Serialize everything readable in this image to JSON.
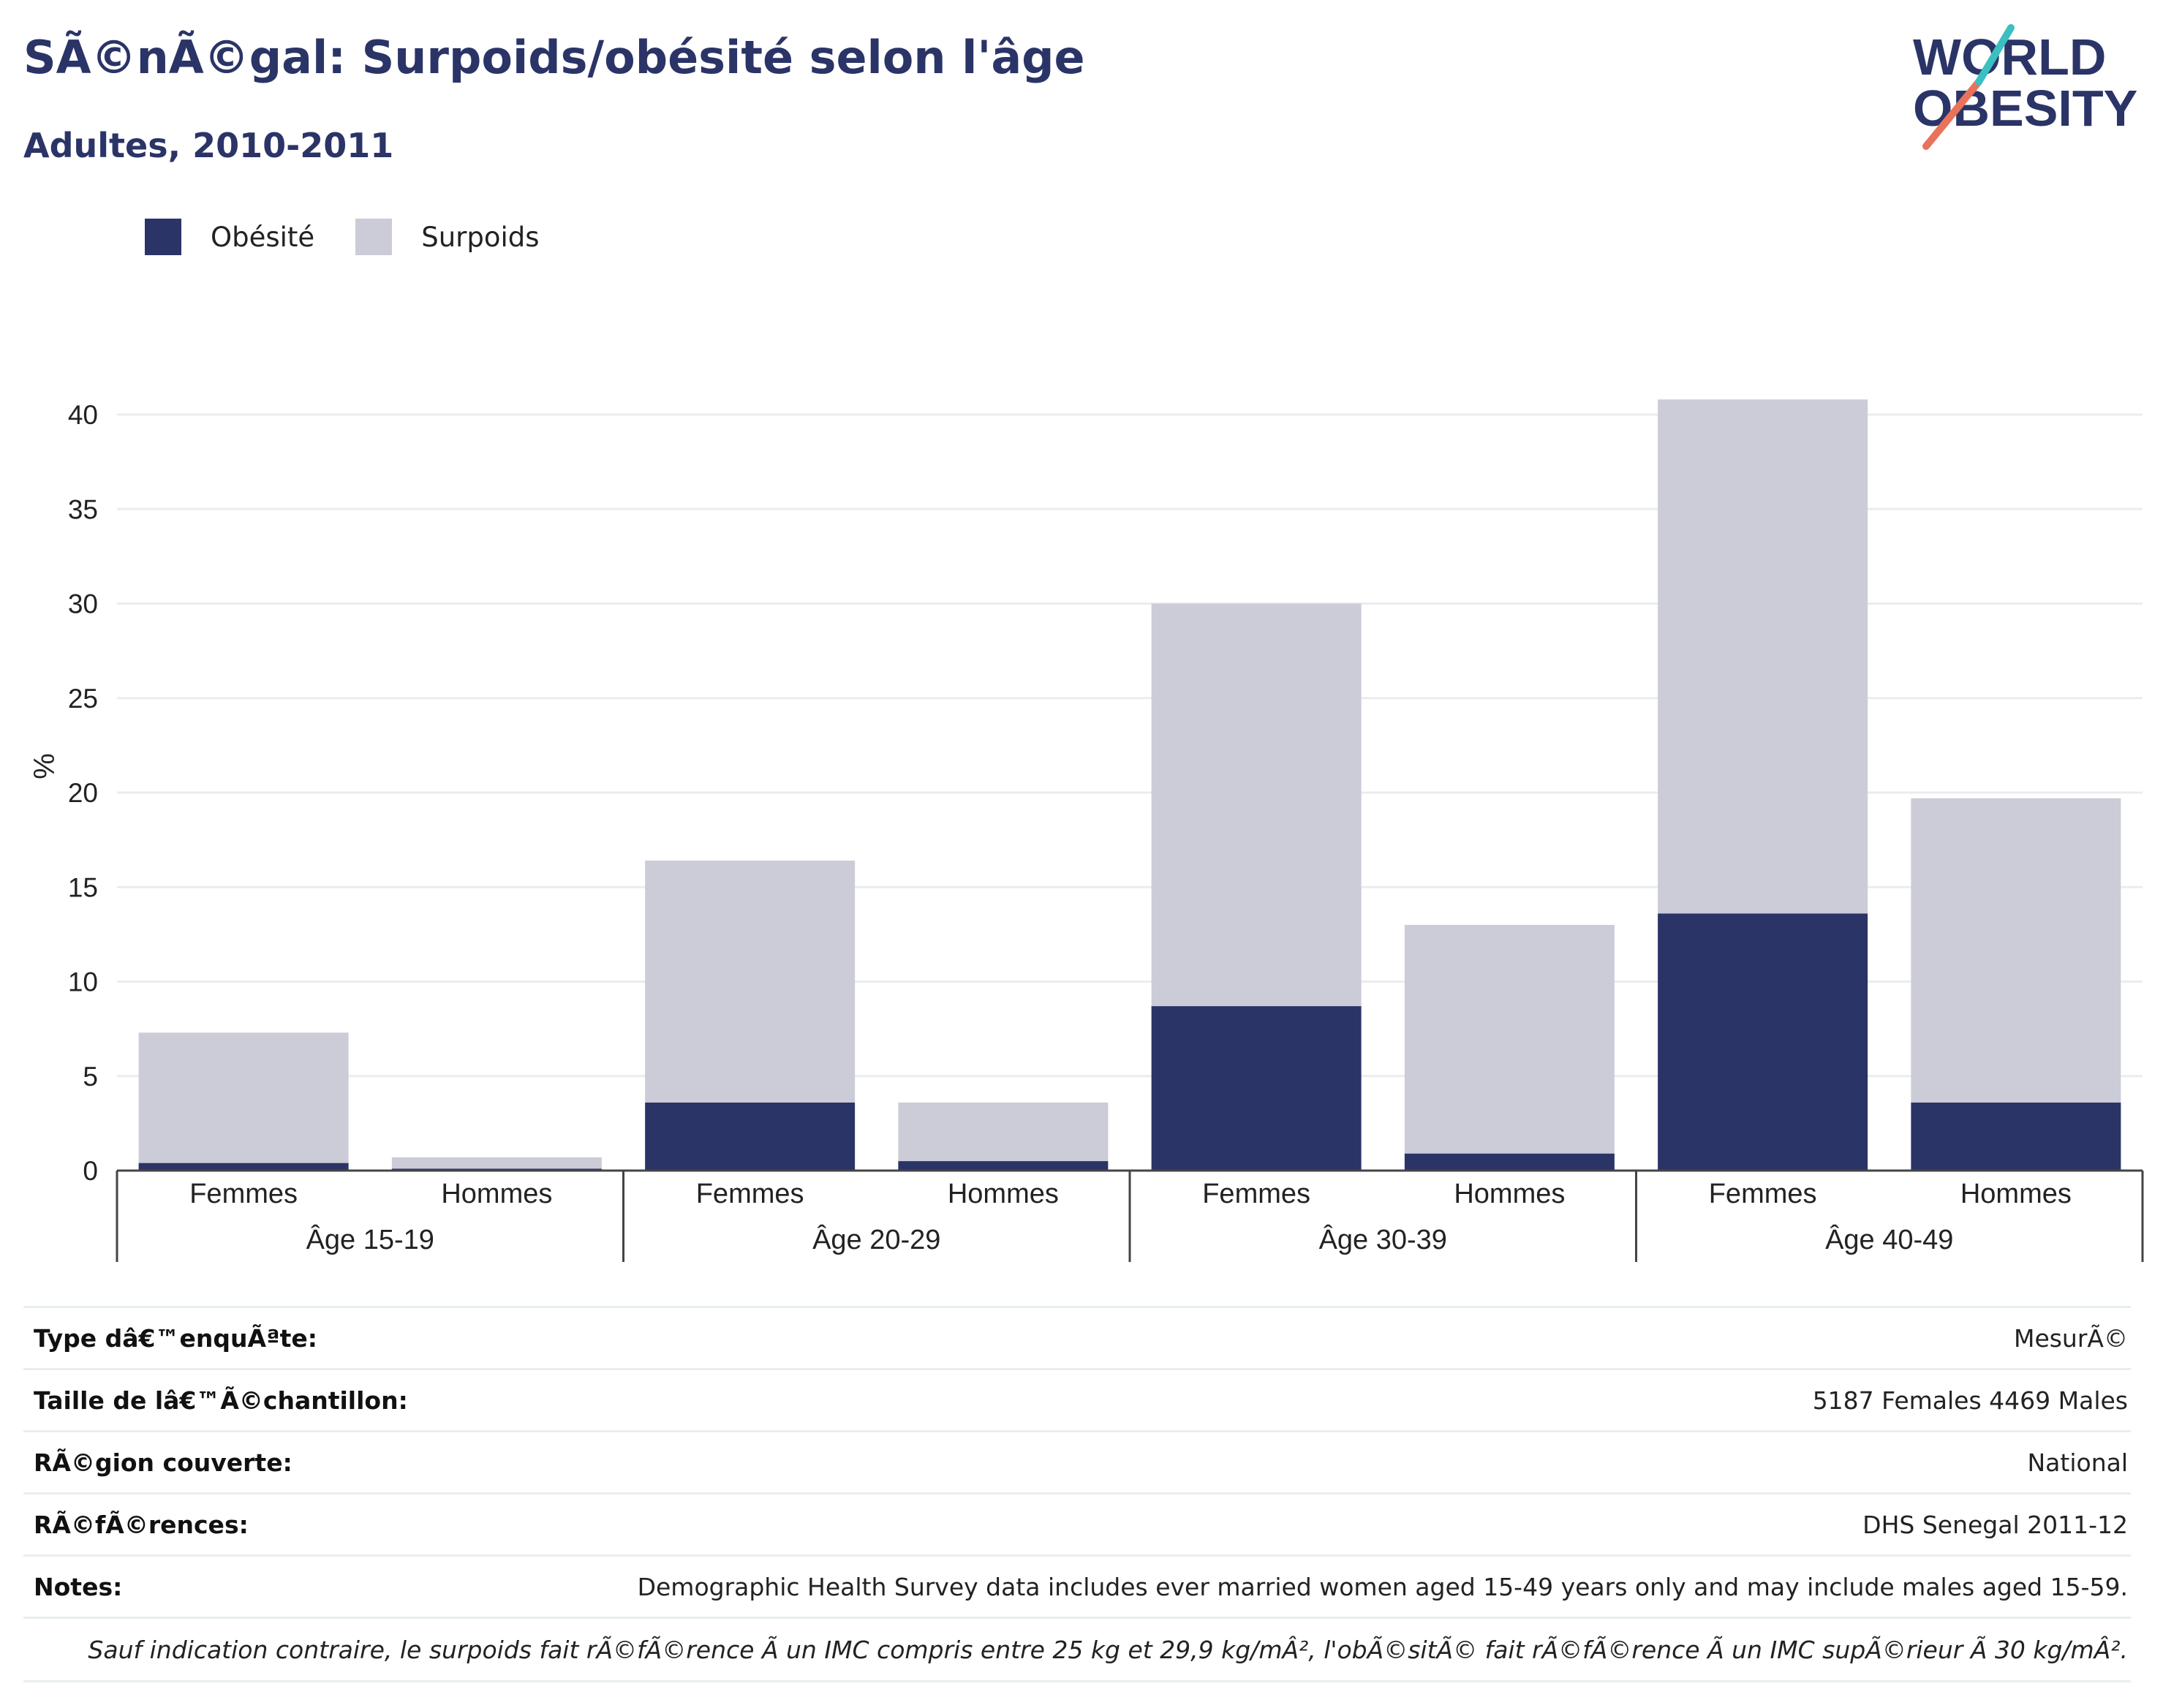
{
  "header": {
    "title": "SÃ©nÃ©gal: Surpoids/obésité selon l'âge",
    "subtitle": "Adultes, 2010-2011"
  },
  "logo": {
    "line1": "WORLD",
    "line2": "OBESITY",
    "colors": [
      "#2b3467",
      "#e8735a",
      "#3bbfc0"
    ]
  },
  "legend": [
    {
      "label": "Obésité",
      "color": "#2b3467"
    },
    {
      "label": "Surpoids",
      "color": "#cbccd7"
    }
  ],
  "chart_data": {
    "type": "bar",
    "stacked": true,
    "title": "SÃ©nÃ©gal: Surpoids/obésité selon l'âge",
    "subtitle": "Adultes, 2010-2011",
    "ylabel": "%",
    "xlabel": "",
    "ylim": [
      0,
      42
    ],
    "yticks": [
      0,
      5,
      10,
      15,
      20,
      25,
      30,
      35,
      40
    ],
    "grid": true,
    "legend_position": "top-left",
    "groups": [
      "Âge 15-19",
      "Âge 20-29",
      "Âge 30-39",
      "Âge 40-49"
    ],
    "subcategories": [
      "Femmes",
      "Hommes"
    ],
    "categories": [
      "Femmes",
      "Hommes",
      "Femmes",
      "Hommes",
      "Femmes",
      "Hommes",
      "Femmes",
      "Hommes"
    ],
    "series": [
      {
        "name": "Obésité",
        "color": "#2b3467",
        "values": [
          0.4,
          0.1,
          3.6,
          0.5,
          8.7,
          0.9,
          13.6,
          3.6
        ]
      },
      {
        "name": "Surpoids",
        "color": "#cbccd7",
        "values": [
          6.9,
          0.6,
          12.8,
          3.1,
          21.3,
          12.1,
          27.2,
          16.1
        ]
      }
    ]
  },
  "info_table": {
    "rows": [
      {
        "label": "Type dâ€™enquÃªte:",
        "value": "MesurÃ©"
      },
      {
        "label": "Taille de lâ€™Ã©chantillon:",
        "value": "5187 Females 4469 Males"
      },
      {
        "label": "RÃ©gion couverte:",
        "value": "National"
      },
      {
        "label": "RÃ©fÃ©rences:",
        "value": "DHS Senegal 2011-12"
      },
      {
        "label": "Notes:",
        "value": "Demographic Health Survey data includes ever married women aged 15-49 years only and may include males aged 15-59."
      }
    ],
    "footnote": "Sauf indication contraire, le surpoids fait rÃ©fÃ©rence Ã  un IMC compris entre 25 kg et 29,9 kg/mÂ², l'obÃ©sitÃ© fait rÃ©fÃ©rence Ã  un IMC supÃ©rieur Ã  30 kg/mÂ²."
  }
}
